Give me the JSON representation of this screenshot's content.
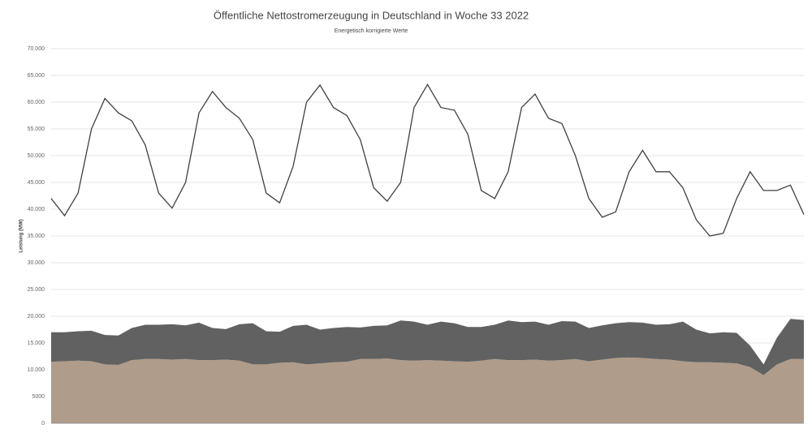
{
  "chart_data": {
    "type": "area",
    "title": "Öffentliche Nettostromerzeugung in Deutschland in Woche 33 2022",
    "subtitle": "Energetisch korrigierte Werte",
    "y_label": "Leistung (MW)",
    "ylim": [
      0,
      70000
    ],
    "yticks": [
      0,
      5000,
      {
        "value": 10000,
        "label": "10.000"
      },
      {
        "value": 15000,
        "label": "15.000"
      },
      {
        "value": 20000,
        "label": "20.000"
      },
      {
        "value": 25000,
        "label": "25.000"
      },
      {
        "value": 30000,
        "label": "30.000"
      },
      {
        "value": 35000,
        "label": "35.000"
      },
      {
        "value": 40000,
        "label": "40.000"
      },
      {
        "value": 45000,
        "label": "45.000"
      },
      {
        "value": 50000,
        "label": "50.000"
      },
      {
        "value": 55000,
        "label": "55.000"
      },
      {
        "value": 60000,
        "label": "60.000"
      },
      {
        "value": 65000,
        "label": "65.000"
      },
      {
        "value": 70000,
        "label": "70.000"
      }
    ],
    "grid": true,
    "series": [
      {
        "type": "area",
        "color": "#b09c8a",
        "values": [
          11500,
          11600,
          11700,
          11600,
          11000,
          10900,
          11800,
          12000,
          12000,
          11900,
          12000,
          11800,
          11800,
          11900,
          11700,
          11000,
          11000,
          11300,
          11400,
          11000,
          11200,
          11400,
          11500,
          12000,
          12000,
          12100,
          11800,
          11700,
          11800,
          11700,
          11600,
          11500,
          11700,
          12000,
          11800,
          11800,
          11900,
          11700,
          11800,
          12000,
          11600,
          11900,
          12200,
          12300,
          12200,
          12000,
          11900,
          11600,
          11400,
          11400,
          11300,
          11200,
          10500,
          9000,
          11000,
          12000,
          12000
        ]
      },
      {
        "type": "area",
        "color": "#616161",
        "values": [
          5500,
          5400,
          5500,
          5700,
          5500,
          5500,
          6000,
          6400,
          6400,
          6600,
          6300,
          7000,
          6000,
          5700,
          6800,
          7700,
          6200,
          5800,
          6800,
          7400,
          6300,
          6400,
          6500,
          5900,
          6200,
          6200,
          7400,
          7300,
          6600,
          7300,
          7100,
          6500,
          6300,
          6400,
          7400,
          7100,
          7100,
          6700,
          7300,
          7000,
          6200,
          6400,
          6500,
          6600,
          6600,
          6400,
          6600,
          7400,
          6100,
          5400,
          5700,
          5700,
          4000,
          2000,
          5000,
          7500,
          7300
        ]
      },
      {
        "type": "line",
        "color": "#404040",
        "values": [
          42000,
          38800,
          43000,
          55000,
          60700,
          58000,
          56500,
          52000,
          43000,
          40200,
          45000,
          58000,
          62000,
          59000,
          57000,
          53000,
          43000,
          41200,
          48000,
          60000,
          63200,
          59000,
          57500,
          53000,
          44000,
          41500,
          45000,
          59000,
          63300,
          59000,
          58500,
          54000,
          43500,
          42000,
          47000,
          59000,
          61500,
          57000,
          56000,
          50000,
          42000,
          38500,
          39500,
          47000,
          51000,
          47000,
          47000,
          44000,
          38000,
          35000,
          35500,
          42000,
          47000,
          43500,
          43500,
          44500,
          39000
        ]
      }
    ]
  }
}
